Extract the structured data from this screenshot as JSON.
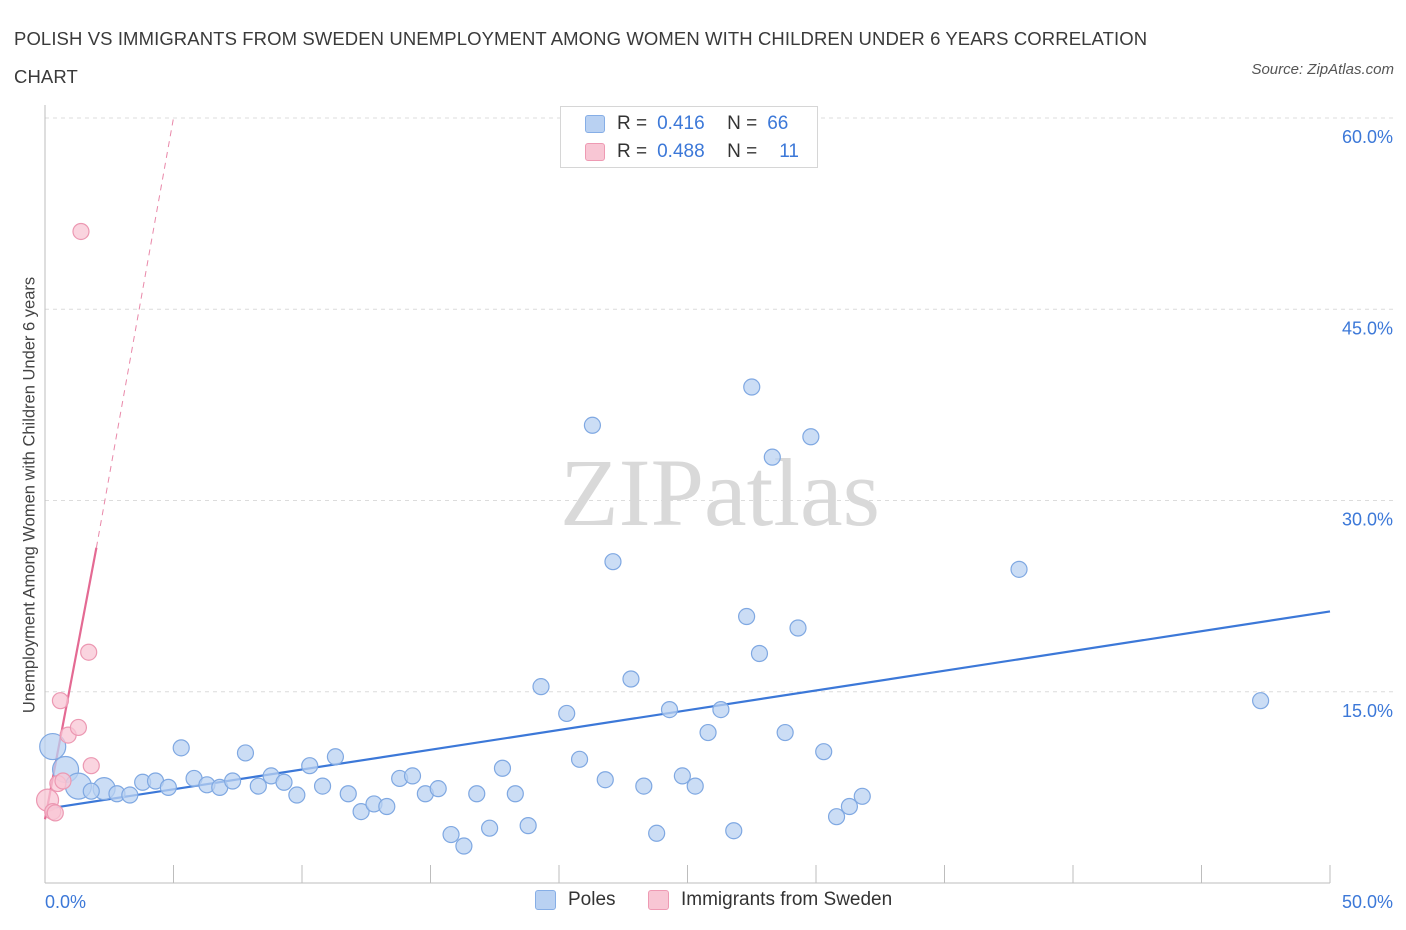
{
  "chart_data": {
    "type": "scatter",
    "title": "POLISH VS IMMIGRANTS FROM SWEDEN UNEMPLOYMENT AMONG WOMEN WITH CHILDREN UNDER 6 YEARS CORRELATION CHART",
    "source": "Source: ZipAtlas.com",
    "xlabel": "",
    "ylabel": "Unemployment Among Women with Children Under 6 years",
    "xlim": [
      0,
      50
    ],
    "ylim": [
      0,
      60
    ],
    "x_tick_labels": [
      "0.0%",
      "50.0%"
    ],
    "y_tick_labels": [
      "15.0%",
      "30.0%",
      "45.0%",
      "60.0%"
    ],
    "y_tick_values": [
      15,
      30,
      45,
      60
    ],
    "grid": true,
    "watermark": "ZIPatlas",
    "colors": {
      "poles": "#3c78d8",
      "sweden": "#e46a93",
      "poles_fill": "#b9d1f2",
      "sweden_fill": "#f8c6d4"
    },
    "legend_stats": [
      {
        "r_label": "R =",
        "r_value": "0.416",
        "n_label": "N =",
        "n_value": "66"
      },
      {
        "r_label": "R =",
        "r_value": "0.488",
        "n_label": "N =",
        "n_value": "11"
      }
    ],
    "series": [
      {
        "name": "Poles",
        "trend": {
          "x": [
            0,
            50
          ],
          "y": [
            5.8,
            21.3
          ]
        },
        "points": [
          {
            "x": 0.3,
            "y": 10.7,
            "s": 3
          },
          {
            "x": 0.8,
            "y": 8.9,
            "s": 3
          },
          {
            "x": 1.3,
            "y": 7.6,
            "s": 3
          },
          {
            "x": 2.3,
            "y": 7.4,
            "s": 2
          },
          {
            "x": 2.8,
            "y": 7.0,
            "s": 1
          },
          {
            "x": 3.3,
            "y": 6.9,
            "s": 1
          },
          {
            "x": 3.8,
            "y": 7.9,
            "s": 1
          },
          {
            "x": 4.3,
            "y": 8.0,
            "s": 1
          },
          {
            "x": 4.8,
            "y": 7.5,
            "s": 1
          },
          {
            "x": 5.3,
            "y": 10.6,
            "s": 1
          },
          {
            "x": 5.8,
            "y": 8.2,
            "s": 1
          },
          {
            "x": 6.3,
            "y": 7.7,
            "s": 1
          },
          {
            "x": 6.8,
            "y": 7.5,
            "s": 1
          },
          {
            "x": 7.3,
            "y": 8.0,
            "s": 1
          },
          {
            "x": 7.8,
            "y": 10.2,
            "s": 1
          },
          {
            "x": 8.3,
            "y": 7.6,
            "s": 1
          },
          {
            "x": 8.8,
            "y": 8.4,
            "s": 1
          },
          {
            "x": 9.3,
            "y": 7.9,
            "s": 1
          },
          {
            "x": 9.8,
            "y": 6.9,
            "s": 1
          },
          {
            "x": 10.3,
            "y": 9.2,
            "s": 1
          },
          {
            "x": 10.8,
            "y": 7.6,
            "s": 1
          },
          {
            "x": 11.3,
            "y": 9.9,
            "s": 1
          },
          {
            "x": 11.8,
            "y": 7.0,
            "s": 1
          },
          {
            "x": 12.3,
            "y": 5.6,
            "s": 1
          },
          {
            "x": 12.8,
            "y": 6.2,
            "s": 1
          },
          {
            "x": 13.3,
            "y": 6.0,
            "s": 1
          },
          {
            "x": 13.8,
            "y": 8.2,
            "s": 1
          },
          {
            "x": 14.3,
            "y": 8.4,
            "s": 1
          },
          {
            "x": 14.8,
            "y": 7.0,
            "s": 1
          },
          {
            "x": 15.3,
            "y": 7.4,
            "s": 1
          },
          {
            "x": 15.8,
            "y": 3.8,
            "s": 1
          },
          {
            "x": 16.3,
            "y": 2.9,
            "s": 1
          },
          {
            "x": 16.8,
            "y": 7.0,
            "s": 1
          },
          {
            "x": 17.3,
            "y": 4.3,
            "s": 1
          },
          {
            "x": 17.8,
            "y": 9.0,
            "s": 1
          },
          {
            "x": 18.3,
            "y": 7.0,
            "s": 1
          },
          {
            "x": 18.8,
            "y": 4.5,
            "s": 1
          },
          {
            "x": 19.3,
            "y": 15.4,
            "s": 1
          },
          {
            "x": 20.3,
            "y": 13.3,
            "s": 1
          },
          {
            "x": 20.8,
            "y": 9.7,
            "s": 1
          },
          {
            "x": 21.3,
            "y": 35.9,
            "s": 1
          },
          {
            "x": 21.8,
            "y": 8.1,
            "s": 1
          },
          {
            "x": 22.1,
            "y": 25.2,
            "s": 1
          },
          {
            "x": 22.8,
            "y": 16.0,
            "s": 1
          },
          {
            "x": 23.3,
            "y": 7.6,
            "s": 1
          },
          {
            "x": 23.8,
            "y": 3.9,
            "s": 1
          },
          {
            "x": 24.3,
            "y": 13.6,
            "s": 1
          },
          {
            "x": 24.8,
            "y": 8.4,
            "s": 1
          },
          {
            "x": 25.3,
            "y": 7.6,
            "s": 1
          },
          {
            "x": 25.8,
            "y": 11.8,
            "s": 1
          },
          {
            "x": 26.3,
            "y": 13.6,
            "s": 1
          },
          {
            "x": 26.8,
            "y": 4.1,
            "s": 1
          },
          {
            "x": 27.3,
            "y": 20.9,
            "s": 1
          },
          {
            "x": 27.8,
            "y": 18.0,
            "s": 1
          },
          {
            "x": 27.5,
            "y": 38.9,
            "s": 1
          },
          {
            "x": 28.3,
            "y": 33.4,
            "s": 1
          },
          {
            "x": 28.8,
            "y": 11.8,
            "s": 1
          },
          {
            "x": 29.3,
            "y": 20.0,
            "s": 1
          },
          {
            "x": 29.8,
            "y": 35.0,
            "s": 1
          },
          {
            "x": 30.3,
            "y": 10.3,
            "s": 1
          },
          {
            "x": 30.8,
            "y": 5.2,
            "s": 1
          },
          {
            "x": 31.3,
            "y": 6.0,
            "s": 1
          },
          {
            "x": 31.8,
            "y": 6.8,
            "s": 1
          },
          {
            "x": 37.9,
            "y": 24.6,
            "s": 1
          },
          {
            "x": 47.3,
            "y": 14.3,
            "s": 1
          },
          {
            "x": 1.8,
            "y": 7.2,
            "s": 1
          }
        ]
      },
      {
        "name": "Immigrants from Sweden",
        "trend": {
          "x": [
            0,
            2.0
          ],
          "y": [
            5.0,
            26.3
          ]
        },
        "trend_extension": {
          "x": [
            2.0,
            5.0
          ],
          "y": [
            26.3,
            60.0
          ]
        },
        "points": [
          {
            "x": 0.1,
            "y": 6.5,
            "s": 2
          },
          {
            "x": 0.3,
            "y": 5.6,
            "s": 1
          },
          {
            "x": 0.5,
            "y": 7.8,
            "s": 1
          },
          {
            "x": 0.7,
            "y": 8.0,
            "s": 1
          },
          {
            "x": 0.9,
            "y": 11.6,
            "s": 1
          },
          {
            "x": 0.6,
            "y": 14.3,
            "s": 1
          },
          {
            "x": 1.3,
            "y": 12.2,
            "s": 1
          },
          {
            "x": 1.7,
            "y": 18.1,
            "s": 1
          },
          {
            "x": 1.8,
            "y": 9.2,
            "s": 1
          },
          {
            "x": 1.4,
            "y": 51.1,
            "s": 1
          },
          {
            "x": 0.4,
            "y": 5.5,
            "s": 1
          }
        ]
      }
    ]
  }
}
